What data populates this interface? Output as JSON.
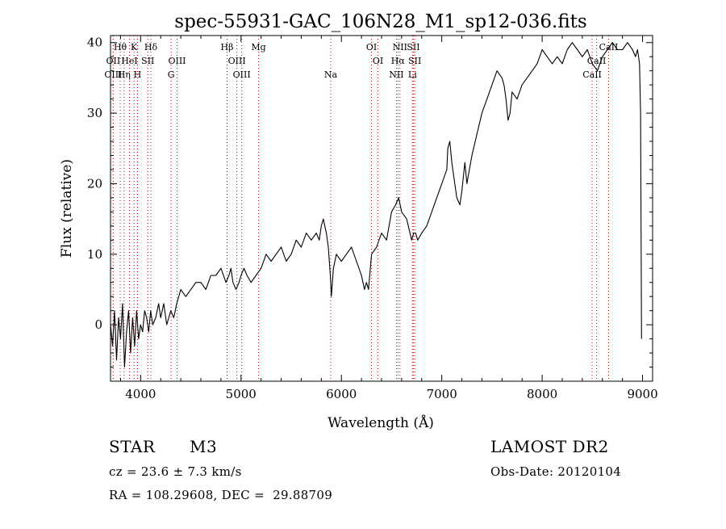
{
  "chart_data": {
    "type": "line",
    "title": "spec-55931-GAC_106N28_M1_sp12-036.fits",
    "xlabel": "Wavelength (Å)",
    "ylabel": "Flux (relative)",
    "xlim": [
      3700,
      9100
    ],
    "ylim": [
      -8,
      41
    ],
    "xticks": [
      4000,
      5000,
      6000,
      7000,
      8000,
      9000
    ],
    "yticks": [
      0,
      10,
      20,
      30,
      40
    ],
    "grid": false,
    "legend": "none",
    "line_color": "#000000",
    "marker_color": "#cc0000",
    "series": [
      {
        "x": [
          3700,
          3720,
          3740,
          3760,
          3780,
          3800,
          3820,
          3840,
          3860,
          3880,
          3900,
          3920,
          3940,
          3960,
          3980,
          4000,
          4020,
          4040,
          4060,
          4080,
          4100,
          4120,
          4150,
          4180,
          4200,
          4230,
          4260,
          4300,
          4330,
          4360,
          4400,
          4450,
          4500,
          4550,
          4600,
          4650,
          4700,
          4750,
          4800,
          4850,
          4880,
          4900,
          4920,
          4950,
          4980,
          5000,
          5030,
          5060,
          5100,
          5150,
          5200,
          5250,
          5300,
          5350,
          5400,
          5450,
          5500,
          5550,
          5600,
          5650,
          5700,
          5750,
          5780,
          5800,
          5820,
          5850,
          5870,
          5890,
          5900,
          5920,
          5950,
          6000,
          6050,
          6100,
          6150,
          6200,
          6230,
          6250,
          6270,
          6300,
          6350,
          6400,
          6450,
          6500,
          6540,
          6570,
          6600,
          6650,
          6700,
          6720,
          6740,
          6760,
          6800,
          6850,
          6900,
          6950,
          7000,
          7050,
          7060,
          7080,
          7100,
          7130,
          7150,
          7180,
          7200,
          7230,
          7250,
          7300,
          7350,
          7400,
          7450,
          7500,
          7550,
          7600,
          7620,
          7640,
          7660,
          7680,
          7700,
          7750,
          7800,
          7850,
          7900,
          7950,
          8000,
          8050,
          8100,
          8150,
          8200,
          8250,
          8300,
          8350,
          8400,
          8450,
          8500,
          8550,
          8600,
          8650,
          8700,
          8750,
          8800,
          8850,
          8900,
          8930,
          8950,
          8970,
          8980,
          8990
        ],
        "y": [
          0,
          -3,
          2,
          -5,
          1,
          -2,
          3,
          -6,
          -1,
          2,
          -4,
          1,
          -3,
          2,
          -2,
          0,
          -1,
          2,
          1,
          -1,
          2,
          0,
          1,
          3,
          1,
          3,
          0,
          2,
          1,
          3,
          5,
          4,
          5,
          6,
          6,
          5,
          7,
          7,
          8,
          6,
          7,
          8,
          6,
          5,
          6,
          7,
          8,
          7,
          6,
          7,
          8,
          10,
          9,
          10,
          11,
          9,
          10,
          12,
          11,
          13,
          12,
          13,
          12,
          14,
          15,
          13,
          11,
          7,
          4,
          8,
          10,
          9,
          10,
          11,
          9,
          7,
          5,
          6,
          5,
          10,
          11,
          13,
          12,
          16,
          17,
          18,
          16,
          15,
          12,
          13,
          13,
          12,
          13,
          14,
          16,
          18,
          20,
          22,
          25,
          26,
          23,
          20,
          18,
          17,
          19,
          23,
          20,
          24,
          27,
          30,
          32,
          34,
          36,
          35,
          34,
          32,
          29,
          30,
          33,
          32,
          34,
          35,
          36,
          37,
          39,
          38,
          37,
          38,
          37,
          39,
          40,
          39,
          38,
          39,
          37,
          36,
          38,
          39,
          40,
          39,
          39,
          40,
          39,
          38,
          39,
          37,
          30,
          -2
        ]
      }
    ],
    "lines": [
      {
        "label": "Hθ",
        "wavelength": 3797,
        "row": 1
      },
      {
        "label": "K",
        "wavelength": 3934,
        "row": 1
      },
      {
        "label": "Hδ",
        "wavelength": 4102,
        "row": 1
      },
      {
        "label": "Hβ",
        "wavelength": 4861,
        "row": 1
      },
      {
        "label": "Mg",
        "wavelength": 5175,
        "row": 1
      },
      {
        "label": "OI",
        "wavelength": 6300,
        "row": 1
      },
      {
        "label": "NII",
        "wavelength": 6583,
        "row": 1
      },
      {
        "label": "SII",
        "wavelength": 6717,
        "row": 1
      },
      {
        "label": "CaII",
        "wavelength": 8662,
        "row": 1
      },
      {
        "label": "OII",
        "wavelength": 3727,
        "row": 2
      },
      {
        "label": "HeI",
        "wavelength": 3889,
        "row": 2
      },
      {
        "label": "SII",
        "wavelength": 4072,
        "row": 2
      },
      {
        "label": "OIII",
        "wavelength": 4363,
        "row": 2
      },
      {
        "label": "OIII",
        "wavelength": 4959,
        "row": 2
      },
      {
        "label": "OI",
        "wavelength": 6364,
        "row": 2
      },
      {
        "label": "Hα",
        "wavelength": 6563,
        "row": 2
      },
      {
        "label": "SII",
        "wavelength": 6731,
        "row": 2
      },
      {
        "label": "CaII",
        "wavelength": 8542,
        "row": 2
      },
      {
        "label": "OIII",
        "wavelength": 3727,
        "row": 3
      },
      {
        "label": "Hη",
        "wavelength": 3835,
        "row": 3
      },
      {
        "label": "H",
        "wavelength": 3969,
        "row": 3
      },
      {
        "label": "G",
        "wavelength": 4304,
        "row": 3
      },
      {
        "label": "OIII",
        "wavelength": 5007,
        "row": 3
      },
      {
        "label": "Na",
        "wavelength": 5893,
        "row": 3
      },
      {
        "label": "NII",
        "wavelength": 6548,
        "row": 3
      },
      {
        "label": "Li",
        "wavelength": 6708,
        "row": 3
      },
      {
        "label": "CaII",
        "wavelength": 8498,
        "row": 3
      }
    ]
  },
  "info": {
    "class_label": "STAR",
    "subclass": "M3",
    "survey": "LAMOST DR2",
    "cz": "cz = 23.6 ± 7.3 km/s",
    "obs_date": "Obs-Date: 20120104",
    "coords": "RA = 108.29608, DEC =  29.88709"
  }
}
